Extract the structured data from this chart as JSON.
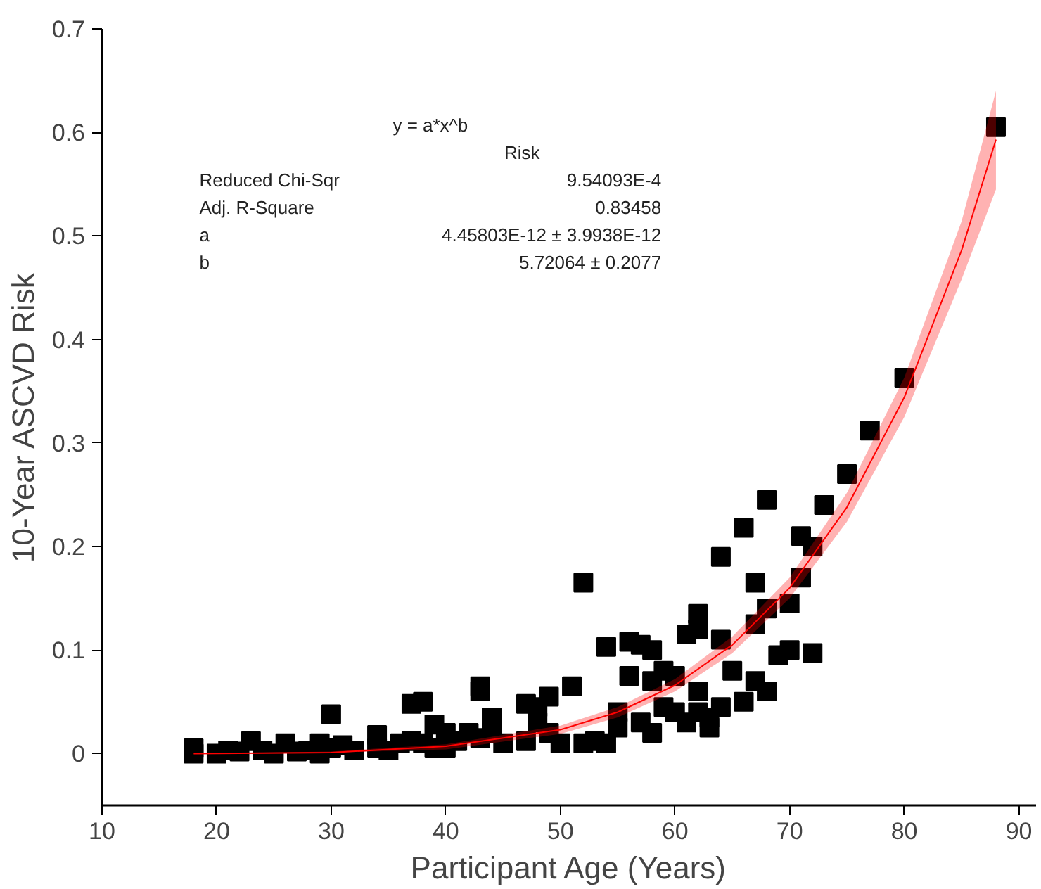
{
  "chart_data": {
    "type": "scatter",
    "xlabel": "Participant Age (Years)",
    "ylabel": "10-Year ASCVD Risk",
    "xlim": [
      10,
      91.5
    ],
    "ylim": [
      -0.05,
      0.7
    ],
    "xticks": [
      10,
      20,
      30,
      40,
      50,
      60,
      70,
      80,
      90
    ],
    "yticks": [
      0,
      0.1,
      0.2,
      0.3,
      0.4,
      0.5,
      0.6,
      0.7
    ],
    "grid": false,
    "annotations": [
      "y = a*x^b",
      "Risk",
      "Reduced Chi-Sqr",
      "9.54093E-4",
      "Adj. R-Square",
      "0.83458",
      "a",
      "4.45803E-12 ± 3.9938E-12",
      "b",
      "5.72064 ± 0.2077"
    ],
    "series": [
      {
        "marker": "square",
        "color": "#000000",
        "x": [
          18,
          18,
          20,
          21,
          22,
          23,
          24,
          25,
          26,
          27,
          28,
          29,
          29,
          30,
          30,
          31,
          32,
          34,
          34,
          35,
          36,
          37,
          37,
          38,
          38,
          39,
          39,
          40,
          40,
          41,
          42,
          43,
          43,
          43,
          44,
          44,
          45,
          47,
          47,
          48,
          48,
          49,
          49,
          50,
          51,
          52,
          52,
          53,
          54,
          54,
          55,
          55,
          56,
          56,
          57,
          57,
          58,
          58,
          58,
          59,
          59,
          60,
          60,
          61,
          61,
          62,
          62,
          62,
          62,
          63,
          63,
          64,
          64,
          64,
          65,
          66,
          66,
          67,
          67,
          67,
          68,
          68,
          68,
          69,
          70,
          70,
          71,
          71,
          72,
          72,
          73,
          75,
          77,
          80,
          88
        ],
        "values": [
          0.005,
          0.0,
          0.0,
          0.003,
          0.002,
          0.012,
          0.003,
          0.0,
          0.01,
          0.002,
          0.003,
          0.01,
          0.0,
          0.038,
          0.005,
          0.008,
          0.003,
          0.018,
          0.005,
          0.003,
          0.01,
          0.048,
          0.012,
          0.05,
          0.01,
          0.005,
          0.028,
          0.02,
          0.005,
          0.012,
          0.02,
          0.065,
          0.06,
          0.015,
          0.035,
          0.02,
          0.01,
          0.048,
          0.012,
          0.045,
          0.03,
          0.055,
          0.02,
          0.01,
          0.065,
          0.165,
          0.01,
          0.012,
          0.103,
          0.01,
          0.04,
          0.025,
          0.108,
          0.075,
          0.105,
          0.03,
          0.1,
          0.07,
          0.02,
          0.08,
          0.045,
          0.075,
          0.04,
          0.115,
          0.03,
          0.135,
          0.12,
          0.06,
          0.04,
          0.035,
          0.025,
          0.19,
          0.11,
          0.045,
          0.08,
          0.218,
          0.05,
          0.165,
          0.125,
          0.07,
          0.245,
          0.14,
          0.06,
          0.095,
          0.145,
          0.1,
          0.21,
          0.17,
          0.2,
          0.097,
          0.24,
          0.27,
          0.312,
          0.363,
          0.605
        ]
      },
      {
        "type": "line",
        "color": "#ff0000",
        "x": [
          18,
          30,
          40,
          50,
          55,
          60,
          65,
          70,
          75,
          80,
          85,
          88
        ],
        "values": [
          0.0,
          0.001,
          0.007,
          0.023,
          0.04,
          0.066,
          0.105,
          0.16,
          0.238,
          0.344,
          0.486,
          0.593
        ],
        "lower": [
          0.0,
          0.001,
          0.004,
          0.019,
          0.035,
          0.06,
          0.097,
          0.15,
          0.224,
          0.325,
          0.458,
          0.545
        ],
        "upper": [
          0.0,
          0.002,
          0.009,
          0.027,
          0.045,
          0.072,
          0.113,
          0.17,
          0.252,
          0.363,
          0.514,
          0.64
        ]
      }
    ]
  }
}
